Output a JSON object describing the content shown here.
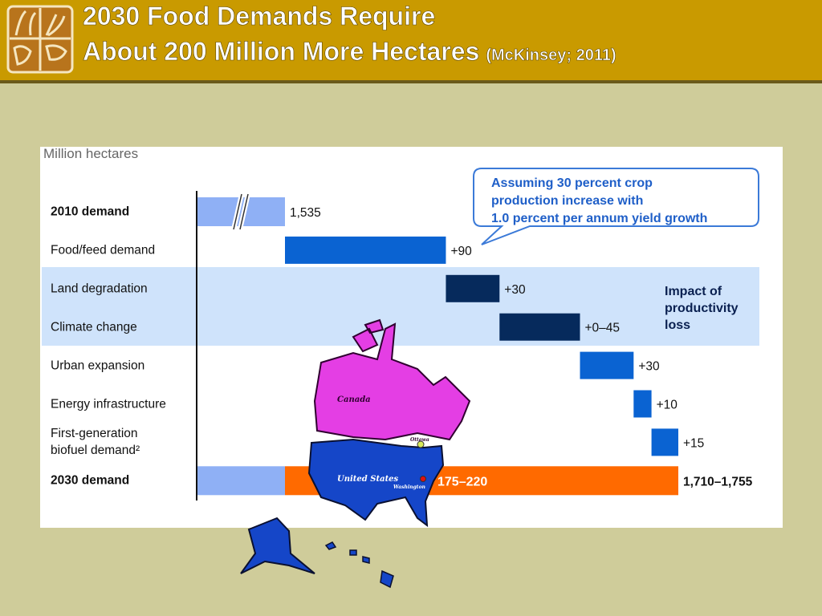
{
  "header": {
    "title_line1": "2030 Food Demands Require",
    "title_line2": "About 200 Million More Hectares",
    "source": "(McKinsey; 2011)"
  },
  "chart_data": {
    "type": "waterfall",
    "unit_label": "Million hectares",
    "categories": [
      "2010 demand",
      "Food/feed demand",
      "Land degradation",
      "Climate change",
      "Urban expansion",
      "Energy infrastructure",
      "First-generation\nbiofuel demand²",
      "2030 demand"
    ],
    "values": [
      1535,
      90,
      30,
      [
        0,
        45
      ],
      30,
      10,
      15,
      [
        1710,
        1755
      ]
    ],
    "value_labels": [
      "1,535",
      "+90",
      "+30",
      "+0–45",
      "+30",
      "+10",
      "+15",
      "1,710–1,755"
    ],
    "colors": [
      "#8fb0f5",
      "#0a63d2",
      "#062a5c",
      "#062a5c",
      "#0a63d2",
      "#0a63d2",
      "#0a63d2",
      "#8fb0f5"
    ],
    "increase": {
      "values": [
        175,
        220
      ],
      "label": "175–220",
      "color": "#ff6a00"
    },
    "highlight": {
      "lines": [
        "Impact of",
        "productivity",
        "loss"
      ]
    },
    "callout": [
      "Assuming 30 percent crop",
      "production increase with",
      "1.0 percent per annum yield growth"
    ]
  },
  "map": {
    "labels": [
      "Canada",
      "Ottawa",
      "United States",
      "Washington"
    ]
  }
}
